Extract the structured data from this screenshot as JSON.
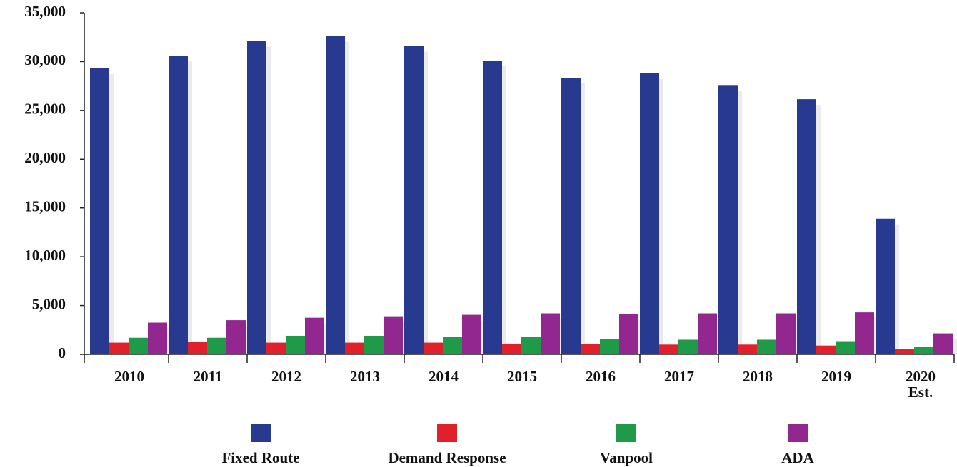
{
  "chart_data": {
    "type": "bar",
    "categories": [
      "2010",
      "2011",
      "2012",
      "2013",
      "2014",
      "2015",
      "2016",
      "2017",
      "2018",
      "2019",
      "2020 Est."
    ],
    "series": [
      {
        "name": "Fixed Route",
        "color": "#283a8f",
        "values": [
          29300,
          30600,
          32100,
          32600,
          31600,
          30100,
          28350,
          28800,
          27600,
          26150,
          13900
        ]
      },
      {
        "name": "Demand Response",
        "color": "#e0202a",
        "values": [
          1200,
          1300,
          1200,
          1200,
          1200,
          1100,
          1050,
          1000,
          1000,
          900,
          550
        ]
      },
      {
        "name": "Vanpool",
        "color": "#1e9a48",
        "values": [
          1700,
          1700,
          1900,
          1900,
          1800,
          1800,
          1600,
          1500,
          1500,
          1350,
          750
        ]
      },
      {
        "name": "ADA",
        "color": "#92278f",
        "values": [
          3250,
          3500,
          3750,
          3900,
          4050,
          4200,
          4100,
          4200,
          4200,
          4300,
          2150
        ]
      }
    ],
    "ylim": [
      0,
      35000
    ],
    "yticks": [
      0,
      {
        "value": 5000,
        "label": "5,000"
      },
      {
        "value": 10000,
        "label": "10,000"
      },
      {
        "value": 15000,
        "label": "15,000"
      },
      {
        "value": 20000,
        "label": "20,000"
      },
      {
        "value": 25000,
        "label": "25,000"
      },
      {
        "value": 30000,
        "label": "30,000"
      },
      {
        "value": 35000,
        "label": "35,000"
      }
    ],
    "legend": "bottom"
  }
}
